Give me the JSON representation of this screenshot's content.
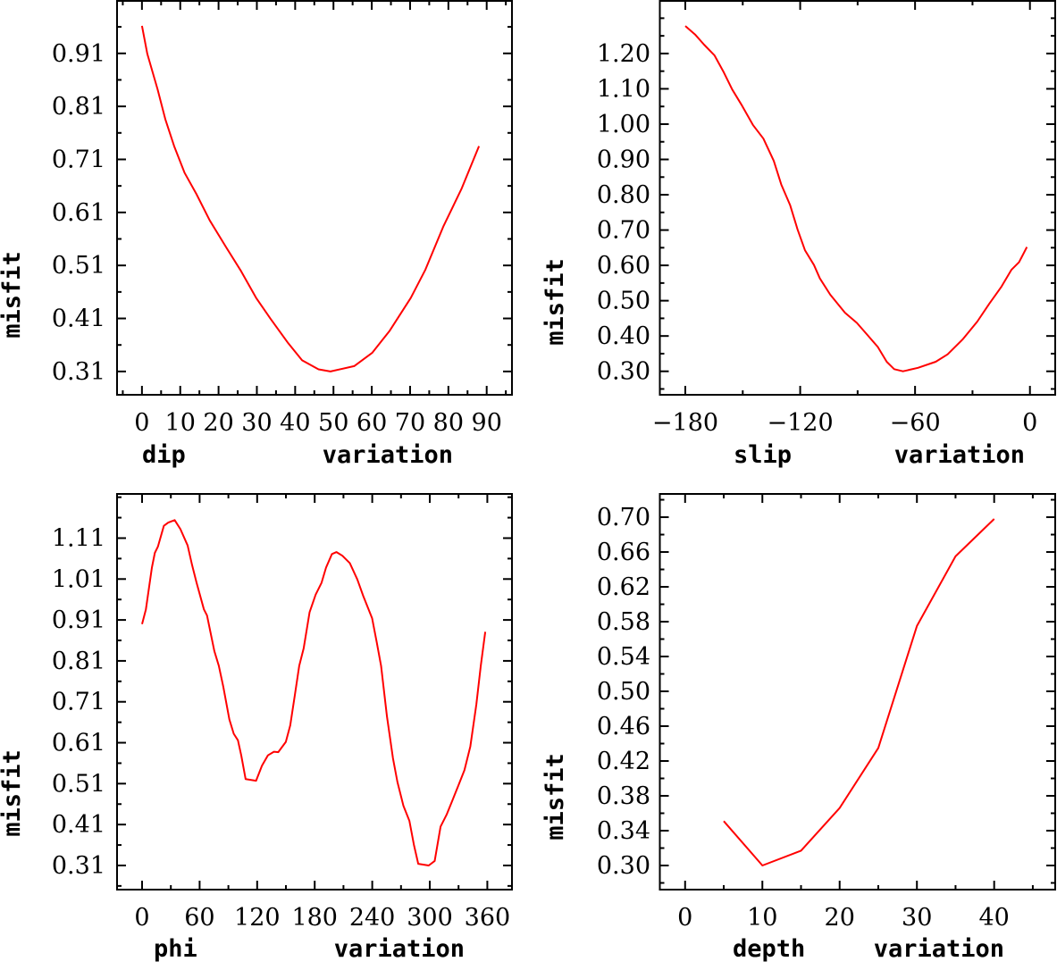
{
  "chart_data": [
    {
      "type": "line",
      "title": "",
      "xlabel": "dip    variation",
      "ylabel": "misfit",
      "xlim": [
        -6.5,
        96.6
      ],
      "ylim": [
        0.266,
        1.009
      ],
      "xticks": [
        0,
        10,
        20,
        30,
        40,
        50,
        60,
        70,
        80,
        90
      ],
      "xtick_labels": [
        "0",
        "10",
        "20",
        "30",
        "40",
        "50",
        "60",
        "70",
        "80",
        "90"
      ],
      "xminor_step": 5,
      "yticks": [
        0.31,
        0.41,
        0.51,
        0.61,
        0.71,
        0.81,
        0.91
      ],
      "ytick_labels": [
        "0.31",
        "0.41",
        "0.51",
        "0.61",
        "0.71",
        "0.81",
        "0.91"
      ],
      "yminor_step": 0.05,
      "grid": false,
      "series": [
        {
          "name": "misfit",
          "color": "#ff0000",
          "x": [
            0,
            1.4,
            4.1,
            6.1,
            8.4,
            11.1,
            14.2,
            17.7,
            22,
            25.9,
            29.8,
            33.6,
            38,
            41.8,
            46.1,
            49.2,
            55.4,
            60.1,
            64.7,
            70.2,
            74,
            78.7,
            83.4,
            88
          ],
          "y": [
            0.962,
            0.909,
            0.842,
            0.786,
            0.735,
            0.685,
            0.645,
            0.595,
            0.544,
            0.499,
            0.449,
            0.409,
            0.365,
            0.331,
            0.314,
            0.31,
            0.32,
            0.345,
            0.387,
            0.449,
            0.502,
            0.584,
            0.654,
            0.735
          ]
        }
      ]
    },
    {
      "type": "line",
      "title": "",
      "xlabel": "slip   variation",
      "ylabel": "misfit",
      "xlim": [
        -193.3,
        13.2
      ],
      "ylim": [
        0.2335,
        1.349
      ],
      "xticks": [
        -180,
        -120,
        -60,
        0
      ],
      "xtick_labels": [
        "−180",
        "−120",
        "−60",
        "0"
      ],
      "xminor_step": 30,
      "yticks": [
        0.3,
        0.4,
        0.5,
        0.6,
        0.7,
        0.8,
        0.9,
        1.0,
        1.1,
        1.2
      ],
      "ytick_labels": [
        "0.30",
        "0.40",
        "0.50",
        "0.60",
        "0.70",
        "0.80",
        "0.90",
        "1.00",
        "1.10",
        "1.20"
      ],
      "yminor_step": 0.05,
      "grid": false,
      "series": [
        {
          "name": "misfit",
          "color": "#ff0000",
          "x": [
            -180,
            -174.9,
            -170.2,
            -164.8,
            -160.1,
            -155.5,
            -150.8,
            -144.6,
            -139.2,
            -133.8,
            -129.9,
            -125.2,
            -121.4,
            -117.5,
            -112.8,
            -109.7,
            -104.3,
            -96.6,
            -90.4,
            -84.9,
            -79.5,
            -74.8,
            -70.9,
            -66.3,
            -58.5,
            -49.2,
            -43,
            -35.2,
            -27.5,
            -21.3,
            -15.1,
            -9.6,
            -5.7,
            -1.6
          ],
          "y": [
            1.278,
            1.254,
            1.225,
            1.195,
            1.149,
            1.098,
            1.056,
            0.997,
            0.959,
            0.896,
            0.829,
            0.77,
            0.702,
            0.643,
            0.601,
            0.563,
            0.517,
            0.466,
            0.437,
            0.403,
            0.369,
            0.327,
            0.306,
            0.3,
            0.31,
            0.327,
            0.348,
            0.39,
            0.441,
            0.491,
            0.538,
            0.588,
            0.609,
            0.652
          ]
        }
      ]
    },
    {
      "type": "line",
      "title": "",
      "xlabel": "phi    variation",
      "ylabel": "misfit",
      "xlim": [
        -26.1,
        385.7
      ],
      "ylim": [
        0.251,
        1.218
      ],
      "xticks": [
        0,
        60,
        120,
        180,
        240,
        300,
        360
      ],
      "xtick_labels": [
        "0",
        "60",
        "120",
        "180",
        "240",
        "300",
        "360"
      ],
      "xminor_step": 30,
      "yticks": [
        0.31,
        0.41,
        0.51,
        0.61,
        0.71,
        0.81,
        0.91,
        1.01,
        1.11
      ],
      "ytick_labels": [
        "0.31",
        "0.41",
        "0.51",
        "0.61",
        "0.71",
        "0.81",
        "0.91",
        "1.01",
        "1.11"
      ],
      "yminor_step": 0.05,
      "grid": false,
      "series": [
        {
          "name": "misfit",
          "color": "#ff0000",
          "x": [
            0,
            4,
            10.2,
            13.3,
            16.5,
            22.7,
            27.3,
            34,
            40,
            47.5,
            52.1,
            56.8,
            64.5,
            67.7,
            75.4,
            80,
            84.7,
            91,
            95.6,
            100,
            103.4,
            108,
            118.9,
            125,
            131.2,
            137.5,
            142,
            149.9,
            154.5,
            159.2,
            163.9,
            168.5,
            174.7,
            181,
            187.2,
            191.8,
            198,
            202.7,
            208.9,
            216.6,
            224.4,
            230.6,
            239.9,
            244.6,
            249.2,
            255.4,
            261.6,
            266.3,
            272.5,
            278.7,
            283.4,
            288,
            298.9,
            305.1,
            311.3,
            317.5,
            323.7,
            329.9,
            336.1,
            342.3,
            348.5,
            353.2,
            357.8
          ],
          "y": [
            0.9,
            0.936,
            1.038,
            1.074,
            1.089,
            1.14,
            1.148,
            1.154,
            1.132,
            1.092,
            1.045,
            1.001,
            0.936,
            0.921,
            0.834,
            0.798,
            0.747,
            0.667,
            0.632,
            0.616,
            0.579,
            0.521,
            0.517,
            0.554,
            0.579,
            0.588,
            0.587,
            0.612,
            0.652,
            0.725,
            0.798,
            0.841,
            0.929,
            0.972,
            1.001,
            1.038,
            1.071,
            1.076,
            1.067,
            1.049,
            1.009,
            0.969,
            0.914,
            0.856,
            0.798,
            0.674,
            0.572,
            0.514,
            0.456,
            0.419,
            0.361,
            0.314,
            0.31,
            0.321,
            0.405,
            0.434,
            0.47,
            0.506,
            0.543,
            0.601,
            0.703,
            0.798,
            0.881
          ]
        }
      ]
    },
    {
      "type": "line",
      "title": "",
      "xlabel": "depth  variation",
      "ylabel": "misfit",
      "xlim": [
        -3.27,
        47.9
      ],
      "ylim": [
        0.2723,
        0.7267
      ],
      "xticks": [
        0,
        10,
        20,
        30,
        40
      ],
      "xtick_labels": [
        "0",
        "10",
        "20",
        "30",
        "40"
      ],
      "xminor_step": 5,
      "yticks": [
        0.3,
        0.34,
        0.38,
        0.42,
        0.46,
        0.5,
        0.54,
        0.58,
        0.62,
        0.66,
        0.7
      ],
      "ytick_labels": [
        "0.30",
        "0.34",
        "0.38",
        "0.42",
        "0.46",
        "0.50",
        "0.54",
        "0.58",
        "0.62",
        "0.66",
        "0.70"
      ],
      "yminor_step": 0.02,
      "grid": false,
      "series": [
        {
          "name": "misfit",
          "color": "#ff0000",
          "x": [
            5,
            10,
            15,
            20,
            25,
            30,
            35,
            40
          ],
          "y": [
            0.351,
            0.3,
            0.317,
            0.366,
            0.435,
            0.575,
            0.655,
            0.698
          ]
        }
      ]
    }
  ]
}
